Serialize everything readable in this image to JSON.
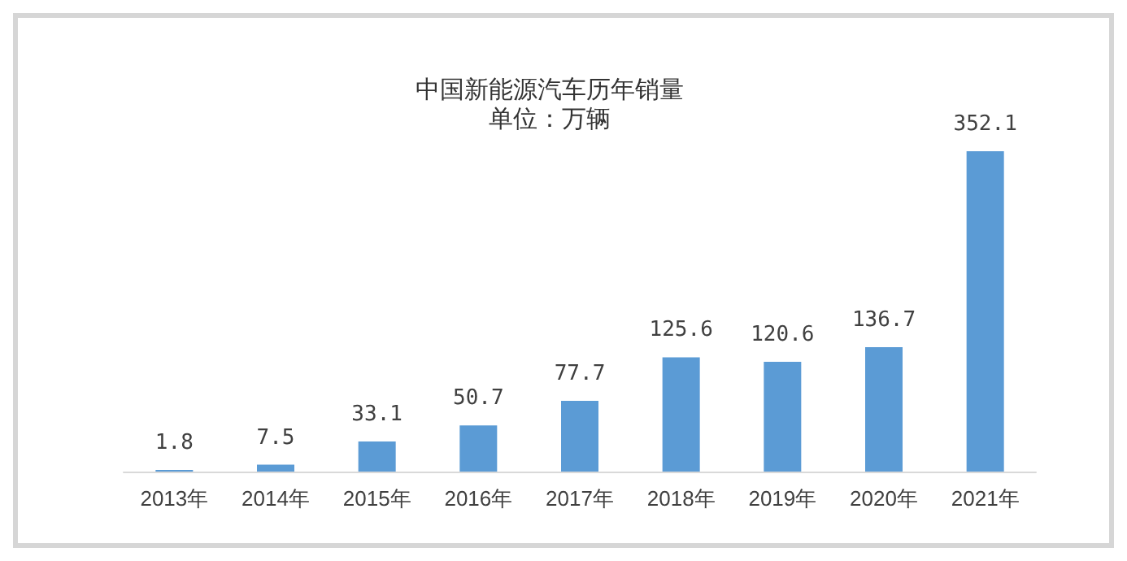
{
  "chart_data": {
    "type": "bar",
    "title": "中国新能源汽车历年销量",
    "subtitle": "单位：万辆",
    "categories": [
      "2013年",
      "2014年",
      "2015年",
      "2016年",
      "2017年",
      "2018年",
      "2019年",
      "2020年",
      "2021年"
    ],
    "values": [
      1.8,
      7.5,
      33.1,
      50.7,
      77.7,
      125.6,
      120.6,
      136.7,
      352.1
    ],
    "color": "#5b9bd5",
    "data_labels": true
  }
}
